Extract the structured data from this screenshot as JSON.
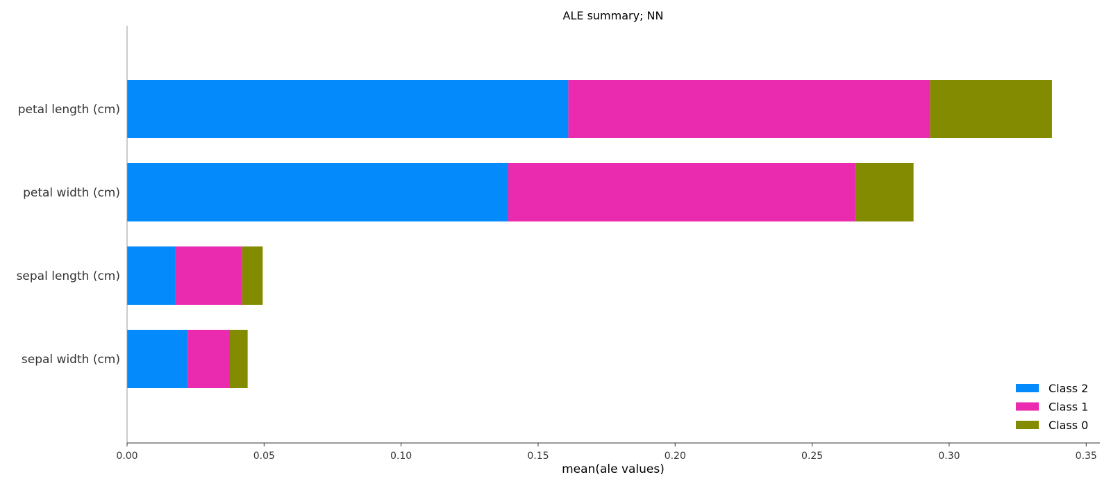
{
  "chart_data": {
    "type": "bar",
    "orientation": "horizontal",
    "stacked": true,
    "title": "ALE summary; NN",
    "xlabel": "mean(ale values)",
    "ylabel": "",
    "xlim": [
      0.0,
      0.355
    ],
    "xticks": [
      "0.00",
      "0.05",
      "0.10",
      "0.15",
      "0.20",
      "0.25",
      "0.30",
      "0.35"
    ],
    "categories": [
      "petal length (cm)",
      "petal width (cm)",
      "sepal length (cm)",
      "sepal width (cm)"
    ],
    "series": [
      {
        "name": "Class 2",
        "color": "#048AFA",
        "values": [
          0.161,
          0.139,
          0.0175,
          0.022
        ]
      },
      {
        "name": "Class 1",
        "color": "#EA2AAF",
        "values": [
          0.132,
          0.127,
          0.0245,
          0.0155
        ]
      },
      {
        "name": "Class 0",
        "color": "#838B00",
        "values": [
          0.0445,
          0.021,
          0.0075,
          0.0065
        ]
      }
    ],
    "legend": {
      "position": "bottom-right",
      "order": [
        "Class 2",
        "Class 1",
        "Class 0"
      ]
    },
    "grid": false
  }
}
